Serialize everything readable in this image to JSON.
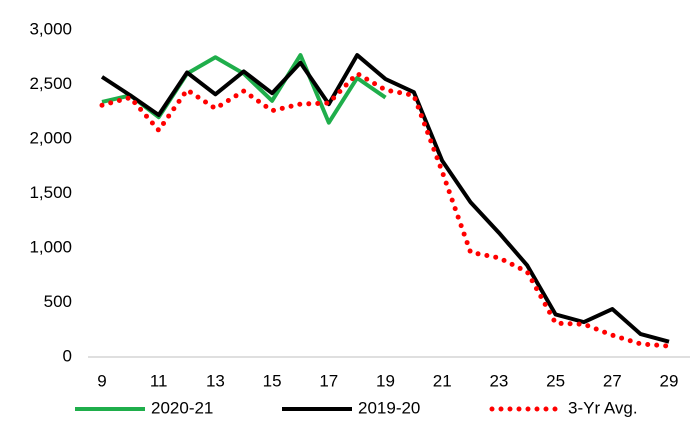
{
  "chart_data": {
    "type": "line",
    "x": [
      9,
      10,
      11,
      12,
      13,
      14,
      15,
      16,
      17,
      18,
      19,
      20,
      21,
      22,
      23,
      24,
      25,
      26,
      27,
      28,
      29
    ],
    "xlim": [
      9,
      29
    ],
    "xticks": [
      9,
      11,
      13,
      15,
      17,
      19,
      21,
      23,
      25,
      27,
      29
    ],
    "ylim": [
      0,
      3000
    ],
    "yticks": [
      0,
      500,
      {
        "value": 1000,
        "label": "1,000"
      },
      {
        "value": 1500,
        "label": "1,500"
      },
      {
        "value": 2000,
        "label": "2,000"
      },
      {
        "value": 2500,
        "label": "2,500"
      },
      {
        "value": 3000,
        "label": "3,000"
      }
    ],
    "grid": false,
    "legend": "bottom",
    "series": [
      {
        "name": "2020-21",
        "color": "#1fae4b",
        "style": "solid",
        "values": [
          2340,
          2400,
          2200,
          2600,
          2750,
          2600,
          2350,
          2770,
          2150,
          2560,
          2380,
          null,
          null,
          null,
          null,
          null,
          null,
          null,
          null,
          null,
          null
        ]
      },
      {
        "name": "2019-20",
        "color": "#000000",
        "style": "solid",
        "values": [
          2570,
          2400,
          2220,
          2610,
          2410,
          2620,
          2420,
          2700,
          2320,
          2770,
          2550,
          2430,
          1800,
          1420,
          1140,
          840,
          390,
          320,
          440,
          210,
          140
        ]
      },
      {
        "name": "3-Yr Avg.",
        "color": "#ff0000",
        "style": "dotted",
        "values": [
          2310,
          2380,
          2080,
          2450,
          2280,
          2440,
          2260,
          2320,
          2330,
          2600,
          2450,
          2400,
          1700,
          960,
          910,
          780,
          310,
          300,
          200,
          120,
          100
        ]
      }
    ]
  }
}
